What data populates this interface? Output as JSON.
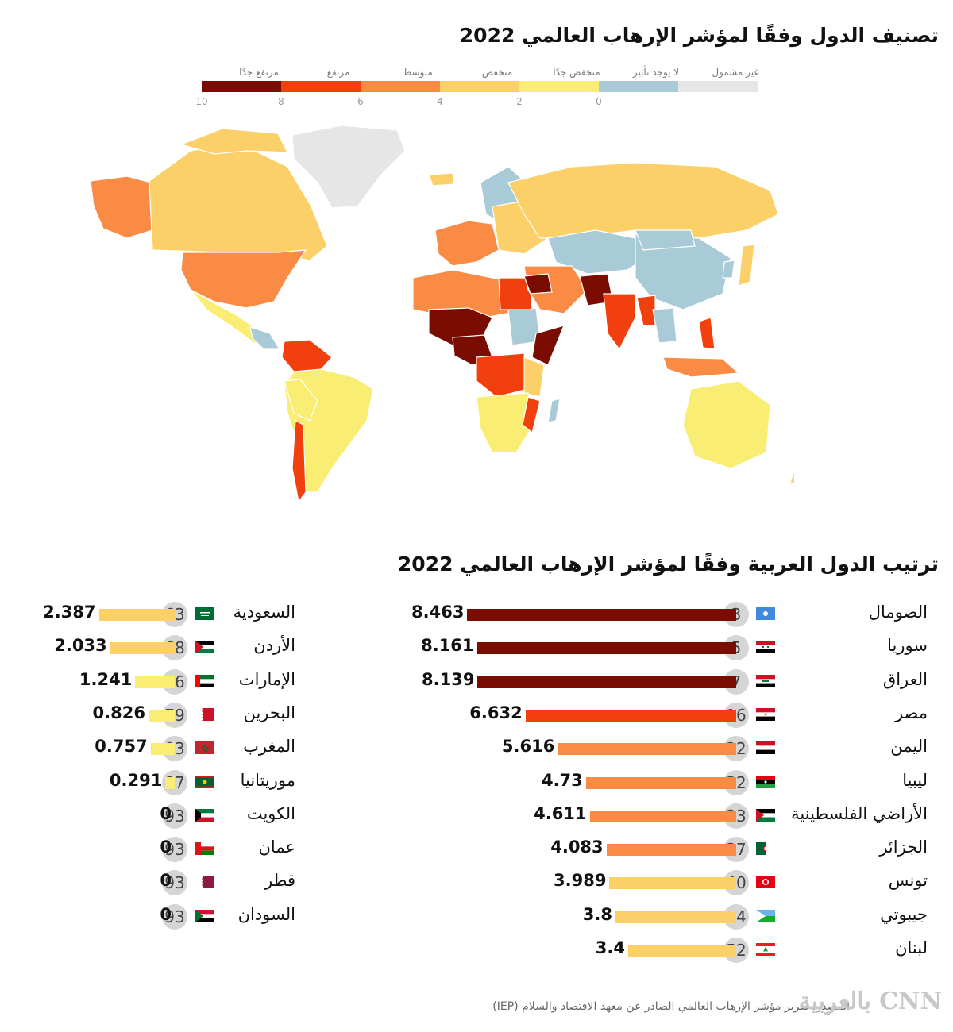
{
  "title": "تصنيف الدول وفقًا لمؤشر الإرهاب العالمي 2022",
  "subtitle": "ترتيب الدول العربية وفقًا لمؤشر الإرهاب العالمي 2022",
  "legend": {
    "categories": [
      {
        "label": "مرتفع جدًا",
        "color": "#7a0c02"
      },
      {
        "label": "مرتفع",
        "color": "#f23f0e"
      },
      {
        "label": "متوسط",
        "color": "#f98b45"
      },
      {
        "label": "منخفض",
        "color": "#fbd068"
      },
      {
        "label": "منخفض جدًا",
        "color": "#f9ee73"
      },
      {
        "label": "لا يوجد تأثير",
        "color": "#a9cbd8"
      },
      {
        "label": "غير مشمول",
        "color": "#e6e6e6"
      }
    ],
    "ticks": [
      "10",
      "8",
      "6",
      "4",
      "2",
      "0"
    ]
  },
  "map": {
    "colors": {
      "very_high": "#7a0c02",
      "high": "#f23f0e",
      "medium": "#f98b45",
      "low": "#fbd068",
      "very_low": "#f9ee73",
      "no_impact": "#a9cbd8",
      "not_included": "#e6e6e6"
    }
  },
  "chart_data": {
    "type": "bar",
    "title": "ترتيب الدول العربية وفقًا لمؤشر الإرهاب العالمي 2022",
    "xlim": [
      0,
      10
    ],
    "columns": [
      {
        "side": "right",
        "rows": [
          {
            "country": "الصومال",
            "rank": "3",
            "value": 8.463,
            "label": "8.463",
            "color": "#7a0c02",
            "flag": "somalia"
          },
          {
            "country": "سوريا",
            "rank": "5",
            "value": 8.161,
            "label": "8.161",
            "color": "#7a0c02",
            "flag": "syria"
          },
          {
            "country": "العراق",
            "rank": "7",
            "value": 8.139,
            "label": "8.139",
            "color": "#7a0c02",
            "flag": "iraq"
          },
          {
            "country": "مصر",
            "rank": "16",
            "value": 6.632,
            "label": "6.632",
            "color": "#f23f0e",
            "flag": "egypt"
          },
          {
            "country": "اليمن",
            "rank": "22",
            "value": 5.616,
            "label": "5.616",
            "color": "#f98b45",
            "flag": "yemen"
          },
          {
            "country": "ليبيا",
            "rank": "32",
            "value": 4.73,
            "label": "4.73",
            "color": "#f98b45",
            "flag": "libya"
          },
          {
            "country": "الأراضي الفلسطينية",
            "rank": "33",
            "value": 4.611,
            "label": "4.611",
            "color": "#f98b45",
            "flag": "palestine"
          },
          {
            "country": "الجزائر",
            "rank": "37",
            "value": 4.083,
            "label": "4.083",
            "color": "#f98b45",
            "flag": "algeria"
          },
          {
            "country": "تونس",
            "rank": "40",
            "value": 3.989,
            "label": "3.989",
            "color": "#fbd068",
            "flag": "tunisia"
          },
          {
            "country": "جيبوتي",
            "rank": "44",
            "value": 3.8,
            "label": "3.8",
            "color": "#fbd068",
            "flag": "djibouti"
          },
          {
            "country": "لبنان",
            "rank": "52",
            "value": 3.4,
            "label": "3.4",
            "color": "#fbd068",
            "flag": "lebanon"
          }
        ]
      },
      {
        "side": "left",
        "rows": [
          {
            "country": "السعودية",
            "rank": "63",
            "value": 2.387,
            "label": "2.387",
            "color": "#fbd068",
            "flag": "saudi"
          },
          {
            "country": "الأردن",
            "rank": "68",
            "value": 2.033,
            "label": "2.033",
            "color": "#fbd068",
            "flag": "jordan"
          },
          {
            "country": "الإمارات",
            "rank": "76",
            "value": 1.241,
            "label": "1.241",
            "color": "#f9ee73",
            "flag": "uae"
          },
          {
            "country": "البحرين",
            "rank": "79",
            "value": 0.826,
            "label": "0.826",
            "color": "#f9ee73",
            "flag": "bahrain"
          },
          {
            "country": "المغرب",
            "rank": "83",
            "value": 0.757,
            "label": "0.757",
            "color": "#f9ee73",
            "flag": "morocco"
          },
          {
            "country": "موريتانيا",
            "rank": "87",
            "value": 0.291,
            "label": "0.291",
            "color": "#f9ee73",
            "flag": "mauritania"
          },
          {
            "country": "الكويت",
            "rank": "93",
            "value": 0,
            "label": "0",
            "color": "#f9ee73",
            "flag": "kuwait"
          },
          {
            "country": "عمان",
            "rank": "93",
            "value": 0,
            "label": "0",
            "color": "#f9ee73",
            "flag": "oman"
          },
          {
            "country": "قطر",
            "rank": "93",
            "value": 0,
            "label": "0",
            "color": "#f9ee73",
            "flag": "qatar"
          },
          {
            "country": "السودان",
            "rank": "93",
            "value": 0,
            "label": "0",
            "color": "#f9ee73",
            "flag": "sudan"
          }
        ]
      }
    ]
  },
  "source": "المصدر: تقرير مؤشر الإرهاب العالمي الصادر عن معهد الاقتصاد والسلام (IEP)",
  "logo": "بالعربية CNN"
}
